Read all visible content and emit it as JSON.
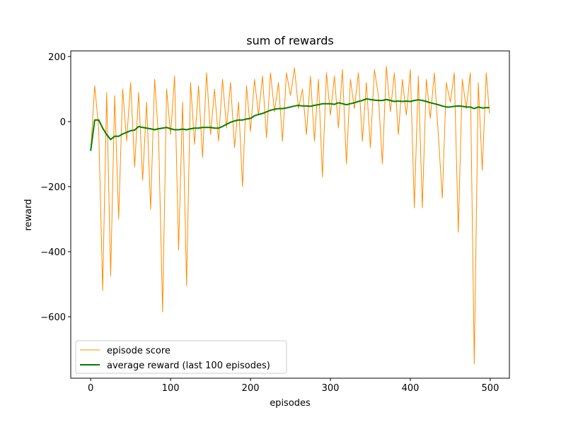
{
  "chart_data": {
    "type": "line",
    "title": "sum of rewards",
    "xlabel": "episodes",
    "ylabel": "reward",
    "x": [
      0,
      5,
      10,
      15,
      20,
      25,
      30,
      35,
      40,
      45,
      50,
      55,
      60,
      65,
      70,
      75,
      80,
      85,
      90,
      95,
      100,
      105,
      110,
      115,
      120,
      125,
      130,
      135,
      140,
      145,
      150,
      155,
      160,
      165,
      170,
      175,
      180,
      185,
      190,
      195,
      200,
      205,
      210,
      215,
      220,
      225,
      230,
      235,
      240,
      245,
      250,
      255,
      260,
      265,
      270,
      275,
      280,
      285,
      290,
      295,
      300,
      305,
      310,
      315,
      320,
      325,
      330,
      335,
      340,
      345,
      350,
      355,
      360,
      365,
      370,
      375,
      380,
      385,
      390,
      395,
      400,
      405,
      410,
      415,
      420,
      425,
      430,
      435,
      440,
      445,
      450,
      455,
      460,
      465,
      470,
      475,
      480,
      485,
      490,
      495,
      499
    ],
    "series": [
      {
        "name": "episode score",
        "color": "#ff8c00",
        "width": 1,
        "values": [
          -90,
          110,
          -20,
          -520,
          90,
          -475,
          80,
          -300,
          100,
          -60,
          120,
          -140,
          90,
          -180,
          60,
          -270,
          130,
          -50,
          -585,
          100,
          -40,
          140,
          -395,
          60,
          -505,
          120,
          -70,
          110,
          -110,
          150,
          -40,
          100,
          -60,
          130,
          -20,
          120,
          -80,
          60,
          -200,
          110,
          -30,
          130,
          20,
          140,
          -50,
          150,
          30,
          120,
          -60,
          150,
          80,
          165,
          40,
          100,
          -40,
          140,
          -60,
          130,
          -170,
          150,
          20,
          140,
          -20,
          160,
          -130,
          130,
          40,
          150,
          -60,
          120,
          -80,
          160,
          80,
          -130,
          170,
          30,
          150,
          -40,
          130,
          20,
          160,
          -265,
          140,
          -265,
          130,
          10,
          150,
          -40,
          -235,
          120,
          60,
          150,
          -340,
          130,
          40,
          150,
          -745,
          120,
          -150,
          150,
          25
        ]
      },
      {
        "name": "average reward (last 100 episodes)",
        "color": "#008000",
        "width": 2,
        "values": [
          -90,
          5,
          5,
          -20,
          -40,
          -55,
          -45,
          -45,
          -38,
          -33,
          -28,
          -26,
          -15,
          -18,
          -20,
          -22,
          -25,
          -22,
          -20,
          -18,
          -22,
          -25,
          -25,
          -23,
          -25,
          -22,
          -20,
          -20,
          -18,
          -18,
          -18,
          -20,
          -20,
          -15,
          -8,
          -2,
          2,
          5,
          5,
          8,
          10,
          18,
          22,
          25,
          30,
          35,
          38,
          40,
          40,
          42,
          45,
          48,
          50,
          48,
          48,
          47,
          50,
          52,
          55,
          55,
          55,
          53,
          58,
          55,
          52,
          55,
          58,
          62,
          65,
          70,
          68,
          66,
          65,
          65,
          68,
          65,
          62,
          63,
          62,
          63,
          62,
          65,
          67,
          65,
          62,
          58,
          55,
          52,
          48,
          45,
          45,
          47,
          48,
          47,
          45,
          45,
          40,
          45,
          42,
          43,
          43
        ]
      }
    ],
    "xlim": [
      -24.95,
      523.95
    ],
    "xticks": [
      0,
      100,
      200,
      300,
      400,
      500
    ],
    "ylim": [
      -789,
      217.4
    ],
    "yticks": [
      {
        "value": -600,
        "label": "−600"
      },
      {
        "value": -400,
        "label": "−400"
      },
      {
        "value": -200,
        "label": "−200"
      },
      0,
      200
    ],
    "legend": "lower left"
  }
}
